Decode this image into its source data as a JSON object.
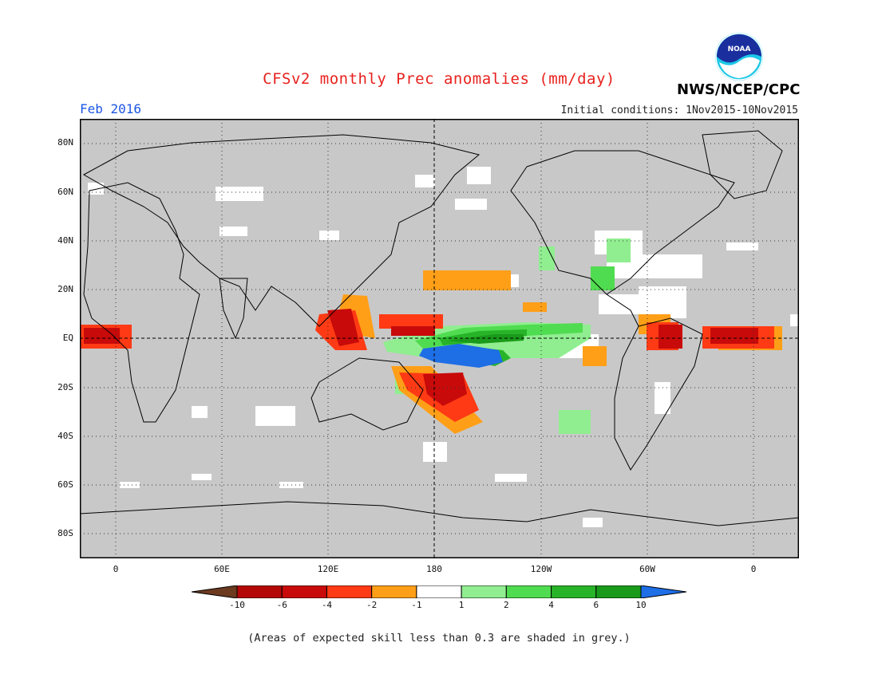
{
  "header": {
    "title": "CFSv2 monthly Prec anomalies (mm/day)",
    "period": "Feb 2016",
    "initial_conditions": "Initial conditions: 1Nov2015-10Nov2015",
    "agency": "NWS/NCEP/CPC",
    "logo_text": "NOAA"
  },
  "axes": {
    "lat_labels": [
      "80N",
      "60N",
      "40N",
      "20N",
      "EQ",
      "20S",
      "40S",
      "60S",
      "80S"
    ],
    "lon_labels": [
      "0",
      "60E",
      "120E",
      "180",
      "120W",
      "60W",
      "0"
    ]
  },
  "colorbar": {
    "labels": [
      "-10",
      "-6",
      "-4",
      "-2",
      "-1",
      "1",
      "2",
      "4",
      "6",
      "10"
    ],
    "colors": {
      "below_neg10": "#6b3a1f",
      "neg10_neg6": "#b40808",
      "neg6_neg4": "#c80a0a",
      "neg4_neg2": "#ff3a14",
      "neg2_neg1": "#ff9f18",
      "neg1_1": "#ffffff",
      "1_2": "#90ee90",
      "2_4": "#50dc50",
      "4_6": "#28b428",
      "6_10": "#1a9a1a",
      "above_10": "#1e6ee6"
    }
  },
  "map_colors": {
    "ocean_land_grey": "#c8c8c8",
    "coastline": "#000000"
  },
  "footnote": "(Areas of expected skill less than 0.3 are shaded in grey.)"
}
